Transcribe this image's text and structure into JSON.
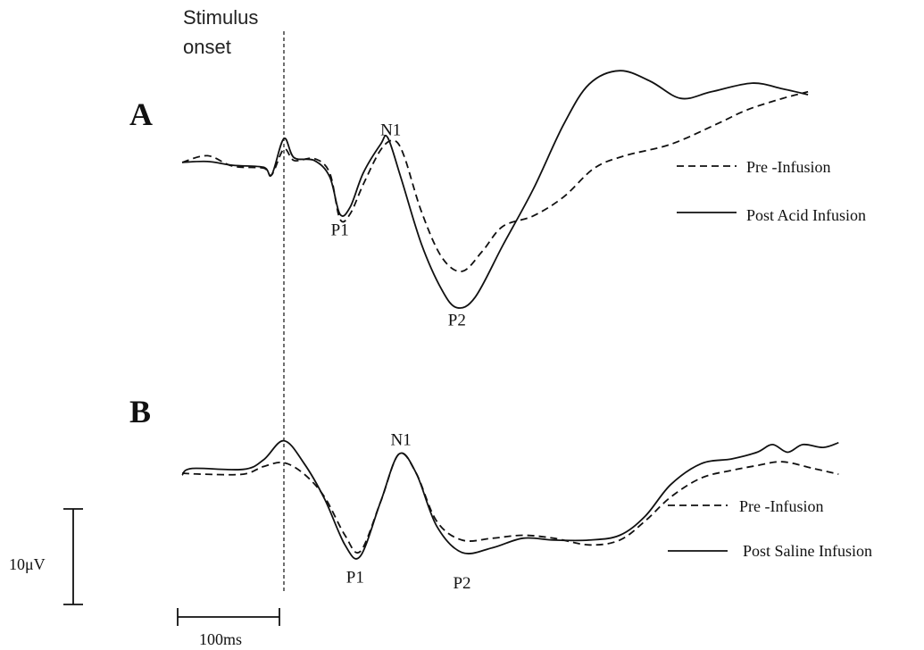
{
  "figure": {
    "stimulus_label_line1": "Stimulus",
    "stimulus_label_line2": "onset",
    "scale_voltage_label": "10μV",
    "scale_time_label": "100ms"
  },
  "chart_data": [
    {
      "type": "line",
      "panel": "A",
      "x_unit": "ms relative to stimulus onset",
      "y_unit": "μV",
      "y_positive": "down",
      "peak_labels": [
        {
          "name": "N1",
          "x": 105,
          "y": -2.0
        },
        {
          "name": "P1",
          "x": 55,
          "y": 5.3
        },
        {
          "name": "P2",
          "x": 170,
          "y": 14.7
        }
      ],
      "series": [
        {
          "name": "Pre -Infusion",
          "style": "dashed",
          "points": [
            [
              -100,
              -0.1
            ],
            [
              -75,
              -0.8
            ],
            [
              -50,
              0.3
            ],
            [
              -20,
              0.5
            ],
            [
              -12,
              1.2
            ],
            [
              0,
              -1.5
            ],
            [
              10,
              -0.3
            ],
            [
              30,
              -0.5
            ],
            [
              45,
              1.0
            ],
            [
              55,
              5.8
            ],
            [
              65,
              5.3
            ],
            [
              78,
              2.2
            ],
            [
              95,
              -1.4
            ],
            [
              108,
              -2.4
            ],
            [
              118,
              -0.8
            ],
            [
              135,
              5.0
            ],
            [
              155,
              9.8
            ],
            [
              175,
              11.3
            ],
            [
              195,
              9.2
            ],
            [
              215,
              6.6
            ],
            [
              245,
              5.5
            ],
            [
              275,
              3.5
            ],
            [
              305,
              0.5
            ],
            [
              335,
              -0.8
            ],
            [
              380,
              -2.0
            ],
            [
              425,
              -4.1
            ],
            [
              455,
              -5.6
            ],
            [
              490,
              -6.8
            ],
            [
              515,
              -7.5
            ]
          ]
        },
        {
          "name": "Post Acid Infusion",
          "style": "solid",
          "points": [
            [
              -100,
              -0.1
            ],
            [
              -75,
              -0.2
            ],
            [
              -50,
              0.2
            ],
            [
              -20,
              0.4
            ],
            [
              -12,
              1.2
            ],
            [
              0,
              -2.6
            ],
            [
              10,
              -0.6
            ],
            [
              30,
              -0.3
            ],
            [
              45,
              1.4
            ],
            [
              55,
              5.3
            ],
            [
              65,
              4.6
            ],
            [
              78,
              1.0
            ],
            [
              95,
              -2.0
            ],
            [
              102,
              -2.7
            ],
            [
              115,
              1.5
            ],
            [
              135,
              8.4
            ],
            [
              155,
              13.2
            ],
            [
              170,
              15.1
            ],
            [
              188,
              14.0
            ],
            [
              215,
              8.6
            ],
            [
              245,
              2.7
            ],
            [
              275,
              -4.1
            ],
            [
              300,
              -8.3
            ],
            [
              330,
              -9.7
            ],
            [
              360,
              -8.6
            ],
            [
              390,
              -6.8
            ],
            [
              420,
              -7.5
            ],
            [
              460,
              -8.4
            ],
            [
              490,
              -7.8
            ],
            [
              515,
              -7.2
            ]
          ]
        }
      ]
    },
    {
      "type": "line",
      "panel": "B",
      "x_unit": "ms relative to stimulus onset",
      "y_unit": "μV",
      "y_positive": "down",
      "peak_labels": [
        {
          "name": "N1",
          "x": 115,
          "y": -2.0
        },
        {
          "name": "P1",
          "x": 70,
          "y": 9.2
        },
        {
          "name": "P2",
          "x": 175,
          "y": 9.8
        }
      ],
      "series": [
        {
          "name": "Pre -Infusion",
          "style": "dashed",
          "points": [
            [
              -100,
              0.0
            ],
            [
              -80,
              0.1
            ],
            [
              -40,
              0.1
            ],
            [
              -20,
              -0.7
            ],
            [
              0,
              -1.1
            ],
            [
              20,
              0.1
            ],
            [
              40,
              2.5
            ],
            [
              60,
              6.5
            ],
            [
              75,
              8.2
            ],
            [
              95,
              3.0
            ],
            [
              113,
              -2.0
            ],
            [
              130,
              0.0
            ],
            [
              150,
              5.0
            ],
            [
              175,
              7.0
            ],
            [
              205,
              6.8
            ],
            [
              235,
              6.5
            ],
            [
              265,
              6.8
            ],
            [
              300,
              7.5
            ],
            [
              330,
              7.0
            ],
            [
              355,
              5.0
            ],
            [
              380,
              2.5
            ],
            [
              410,
              0.5
            ],
            [
              440,
              -0.3
            ],
            [
              465,
              -0.8
            ],
            [
              490,
              -1.2
            ],
            [
              520,
              -0.5
            ],
            [
              545,
              0.1
            ]
          ]
        },
        {
          "name": "Post Saline Infusion",
          "style": "solid",
          "points": [
            [
              -100,
              0.2
            ],
            [
              -90,
              -0.5
            ],
            [
              -40,
              -0.4
            ],
            [
              -20,
              -1.4
            ],
            [
              0,
              -3.4
            ],
            [
              20,
              -1.0
            ],
            [
              40,
              2.7
            ],
            [
              60,
              7.5
            ],
            [
              75,
              8.7
            ],
            [
              95,
              3.0
            ],
            [
              113,
              -2.0
            ],
            [
              130,
              0.0
            ],
            [
              150,
              5.5
            ],
            [
              175,
              8.3
            ],
            [
              205,
              7.8
            ],
            [
              235,
              6.8
            ],
            [
              265,
              7.0
            ],
            [
              300,
              7.0
            ],
            [
              330,
              6.5
            ],
            [
              355,
              4.5
            ],
            [
              380,
              1.2
            ],
            [
              410,
              -1.0
            ],
            [
              440,
              -1.5
            ],
            [
              465,
              -2.2
            ],
            [
              480,
              -3.0
            ],
            [
              495,
              -2.2
            ],
            [
              510,
              -3.0
            ],
            [
              530,
              -2.7
            ],
            [
              545,
              -3.2
            ]
          ]
        }
      ]
    }
  ]
}
